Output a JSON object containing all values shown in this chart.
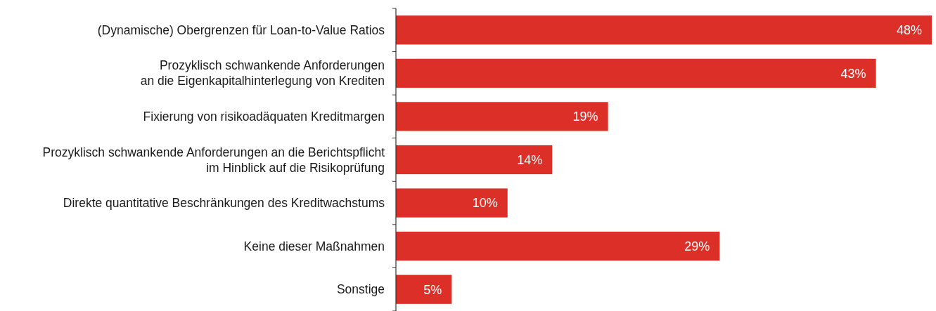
{
  "chart_data": {
    "type": "bar",
    "orientation": "horizontal",
    "categories": [
      "(Dynamische) Obergrenzen für Loan-to-Value Ratios",
      "Prozyklisch schwankende Anforderungen\nan die Eigenkapitalhinterlegung von Krediten",
      "Fixierung von risikoadäquaten Kreditmargen",
      "Prozyklisch schwankende Anforderungen an die Berichtspflicht\nim Hinblick auf die Risikoprüfung",
      "Direkte quantitative Beschränkungen des Kreditwachstums",
      "Keine dieser Maßnahmen",
      "Sonstige"
    ],
    "values": [
      48,
      43,
      19,
      14,
      10,
      29,
      5
    ],
    "value_labels": [
      "48%",
      "43%",
      "19%",
      "14%",
      "10%",
      "29%",
      "5%"
    ],
    "color": "#dc2f27"
  }
}
